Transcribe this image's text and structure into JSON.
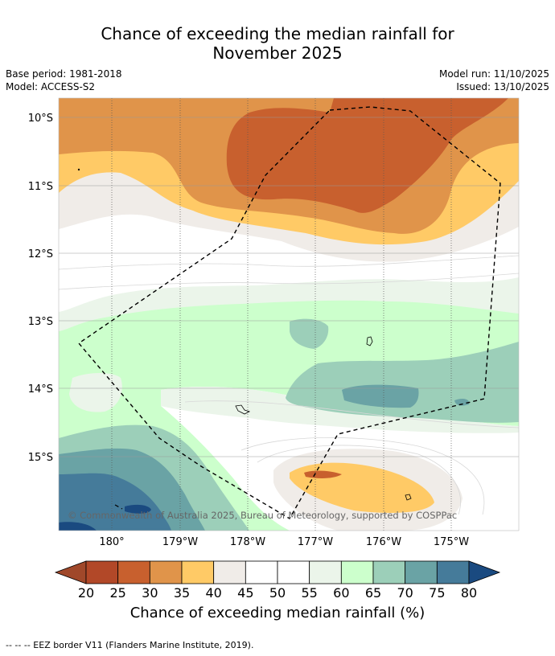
{
  "title_line1": "Chance of exceeding the median rainfall for",
  "title_line2": "November 2025",
  "meta": {
    "base_period": "Base period: 1981-2018",
    "model": "Model: ACCESS-S2",
    "model_run": "Model run: 11/10/2025",
    "issued": "Issued: 13/10/2025"
  },
  "lat_labels": [
    "10°S",
    "11°S",
    "12°S",
    "13°S",
    "14°S",
    "15°S"
  ],
  "lon_labels": [
    "180°",
    "179°W",
    "178°W",
    "177°W",
    "176°W",
    "175°W"
  ],
  "copyright": "© Commonwealth of Australia 2025, Bureau of Meteorology, supported by COSPPac",
  "colorbar": {
    "ticks": [
      "20",
      "25",
      "30",
      "35",
      "40",
      "45",
      "50",
      "55",
      "60",
      "65",
      "70",
      "75",
      "80"
    ],
    "colors": [
      "#a0482a",
      "#b24828",
      "#c8602e",
      "#e0944a",
      "#ffca66",
      "#f0ece8",
      "#ffffff",
      "#ffffff",
      "#ebf5ea",
      "#ccffcc",
      "#9ccfb9",
      "#6aa3a5",
      "#457b9a",
      "#1a4a80"
    ],
    "title": "Chance of exceeding median rainfall (%)"
  },
  "footer": "--  --  -- EEZ border V11 (Flanders Marine Institute, 2019)."
}
